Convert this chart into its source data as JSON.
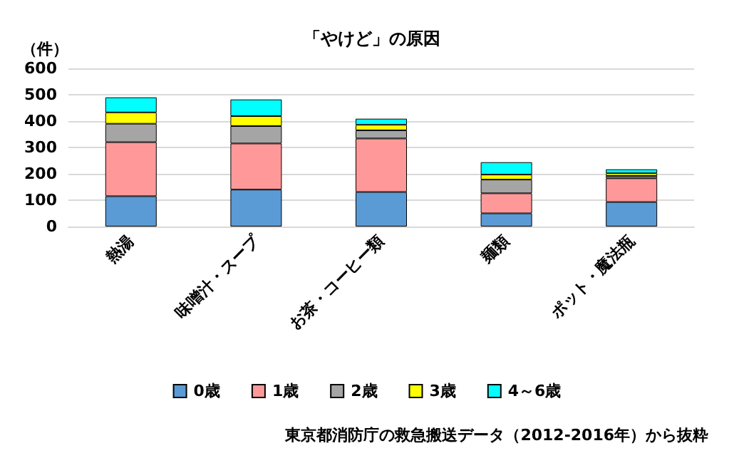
{
  "chart_data": {
    "type": "bar",
    "title": "「やけど」の原因",
    "ylabel": "（件）",
    "categories": [
      "熱湯",
      "味噌汁・スープ",
      "お茶・コーヒー類",
      "麺類",
      "ポット・魔法瓶"
    ],
    "stacked": true,
    "series": [
      {
        "name": "0歳",
        "color": "#5b9bd5",
        "values": [
          115,
          140,
          131,
          50,
          93
        ]
      },
      {
        "name": "1歳",
        "color": "#ff9999",
        "values": [
          205,
          175,
          203,
          76,
          90
        ]
      },
      {
        "name": "2歳",
        "color": "#a5a5a5",
        "values": [
          70,
          66,
          31,
          52,
          9
        ]
      },
      {
        "name": "3歳",
        "color": "#ffff00",
        "values": [
          43,
          38,
          21,
          19,
          10
        ]
      },
      {
        "name": "4～6歳",
        "color": "#00ffff",
        "values": [
          57,
          63,
          23,
          47,
          15
        ]
      }
    ],
    "ylim": [
      0,
      600
    ],
    "yticks": [
      0,
      100,
      200,
      300,
      400,
      500,
      600
    ],
    "grid": "y",
    "legend": "bottom",
    "annotations": [
      "東京都消防庁の救急搬送データ（2012-2016年）から抜粋"
    ]
  }
}
